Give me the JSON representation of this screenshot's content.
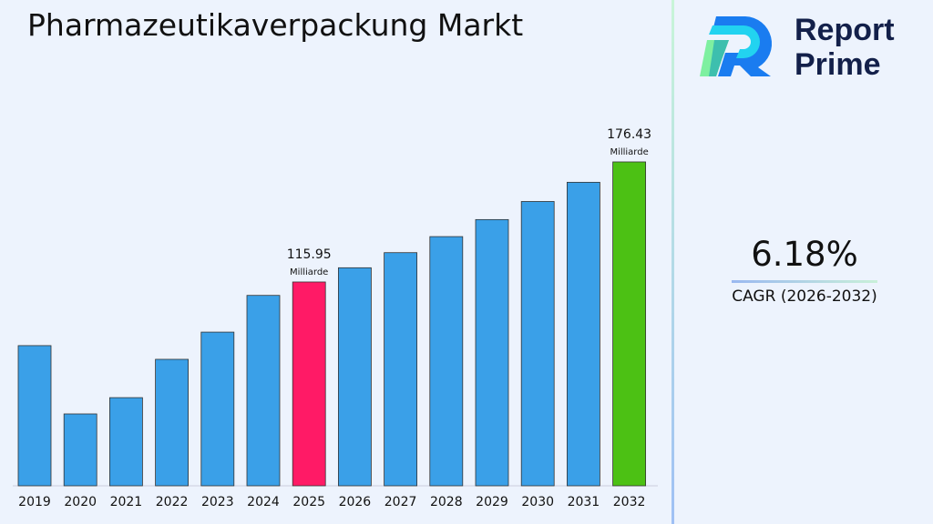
{
  "chart_data": {
    "type": "bar",
    "title": "Pharmazeutikaverpackung Markt",
    "categories": [
      "2019",
      "2020",
      "2021",
      "2022",
      "2023",
      "2024",
      "2025",
      "2026",
      "2027",
      "2028",
      "2029",
      "2030",
      "2031",
      "2032"
    ],
    "values": [
      83.9,
      49.5,
      57.7,
      77.0,
      90.7,
      109.2,
      115.95,
      123.12,
      130.73,
      138.81,
      147.39,
      156.5,
      166.17,
      176.43
    ],
    "colors": [
      "#3aa0e8",
      "#3aa0e8",
      "#3aa0e8",
      "#3aa0e8",
      "#3aa0e8",
      "#3aa0e8",
      "#ff1a66",
      "#3aa0e8",
      "#3aa0e8",
      "#3aa0e8",
      "#3aa0e8",
      "#3aa0e8",
      "#3aa0e8",
      "#4cc114"
    ],
    "annotations": [
      {
        "category": "2025",
        "value": "115.95",
        "unit": "Milliarde"
      },
      {
        "category": "2032",
        "value": "176.43",
        "unit": "Milliarde"
      }
    ],
    "grid": false
  },
  "brand": {
    "line1": "Report",
    "line2": "Prime"
  },
  "cagr": {
    "value": "6.18%",
    "label": "CAGR (2026-2032)"
  }
}
